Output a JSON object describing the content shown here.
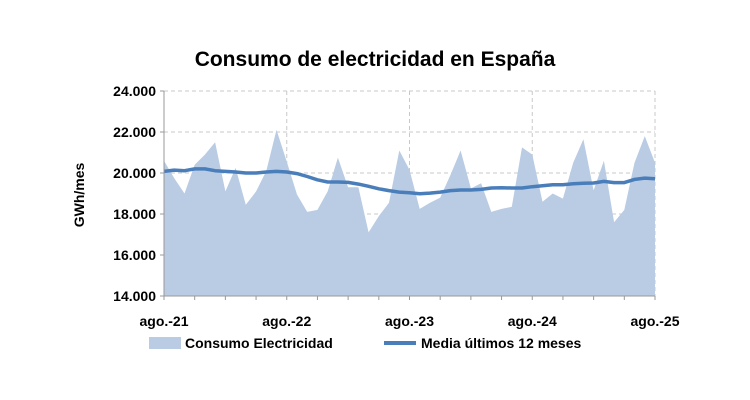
{
  "chart_data": {
    "type": "area",
    "title": "Consumo de electricidad en España",
    "ylabel": "GWh/mes",
    "xlabel": "",
    "ylim": [
      14000,
      24000
    ],
    "yticks": [
      "14.000",
      "16.000",
      "18.000",
      "20.000",
      "22.000",
      "24.000"
    ],
    "ytick_values": [
      14000,
      16000,
      18000,
      20000,
      22000,
      24000
    ],
    "xtick_labels": [
      "ago.-21",
      "ago.-22",
      "ago.-23",
      "ago.-24",
      "ago.-25"
    ],
    "grid": true,
    "legend_position": "bottom",
    "series": [
      {
        "name": "Consumo Electricidad",
        "type": "area",
        "color": "#b9cce4",
        "values": [
          20600,
          19750,
          19000,
          20400,
          20900,
          21500,
          19100,
          20250,
          18450,
          19100,
          20100,
          22100,
          20550,
          18950,
          18100,
          18200,
          19100,
          20750,
          19300,
          19300,
          17100,
          17900,
          18550,
          21100,
          20150,
          18250,
          18550,
          18800,
          19900,
          21100,
          19250,
          19500,
          18100,
          18250,
          18350,
          21250,
          20900,
          18600,
          19000,
          18750,
          20500,
          21650,
          19150,
          20600,
          17600,
          18200,
          20500,
          21800,
          20500
        ]
      },
      {
        "name": "Media últimos 12 meses",
        "type": "line",
        "color": "#4a7ebb",
        "values": [
          20080,
          20140,
          20110,
          20200,
          20200,
          20110,
          20080,
          20050,
          20000,
          20000,
          20050,
          20080,
          20050,
          19970,
          19830,
          19670,
          19560,
          19560,
          19540,
          19460,
          19350,
          19230,
          19140,
          19070,
          19040,
          18990,
          19020,
          19070,
          19140,
          19170,
          19170,
          19200,
          19270,
          19280,
          19270,
          19270,
          19330,
          19380,
          19430,
          19430,
          19480,
          19500,
          19510,
          19590,
          19530,
          19530,
          19690,
          19750,
          19720
        ]
      }
    ]
  }
}
